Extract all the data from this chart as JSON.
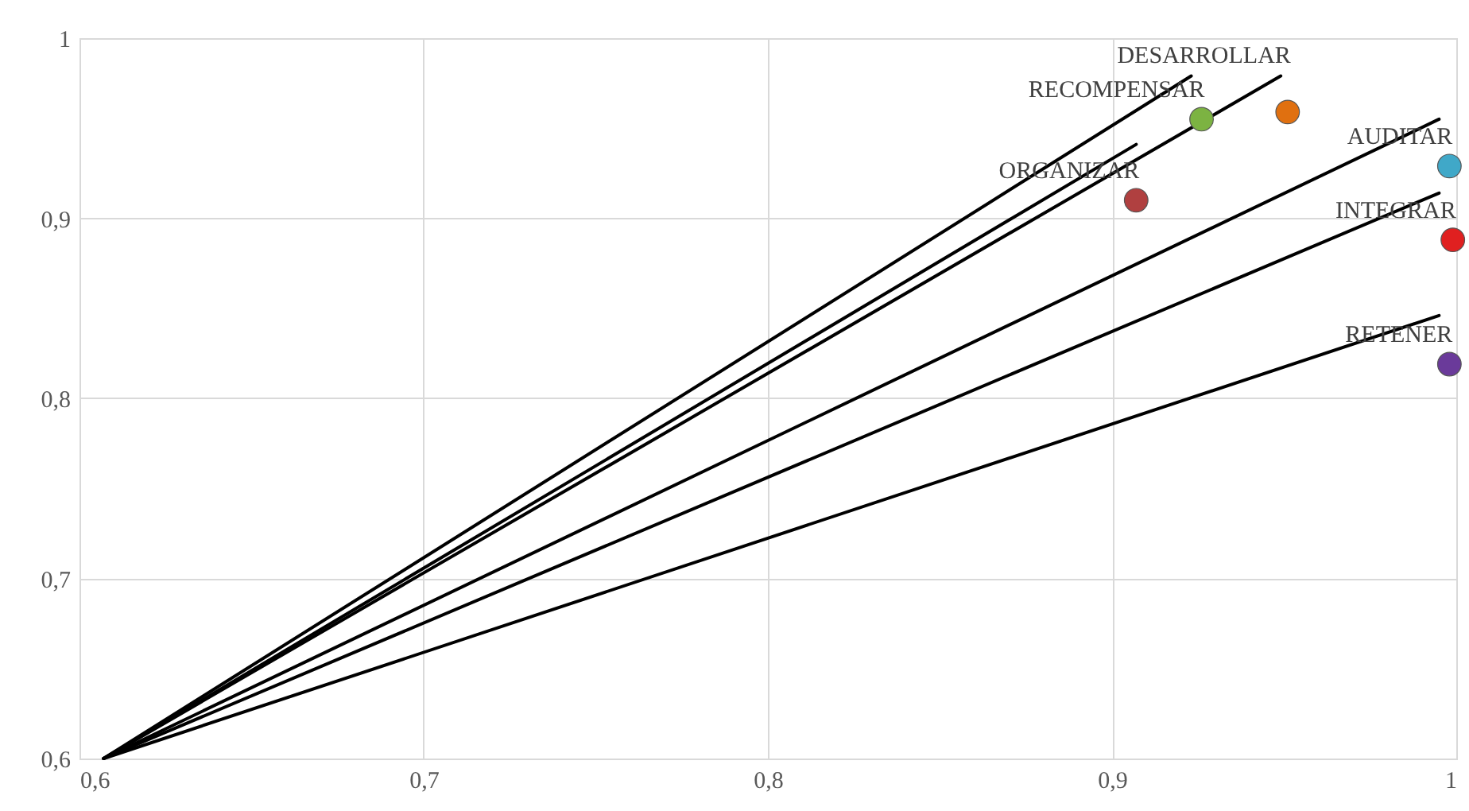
{
  "chart_data": {
    "type": "scatter",
    "marker": "circle",
    "grid": true,
    "xlim": [
      0.6,
      1
    ],
    "ylim": [
      0.6,
      1
    ],
    "xticks": [
      {
        "value": 0.6,
        "label": "0,6"
      },
      {
        "value": 0.7,
        "label": "0,7"
      },
      {
        "value": 0.8,
        "label": "0,8"
      },
      {
        "value": 0.9,
        "label": "0,9"
      },
      {
        "value": 1,
        "label": "1"
      }
    ],
    "yticks": [
      {
        "value": 0.6,
        "label": "0,6"
      },
      {
        "value": 0.7,
        "label": "0,7"
      },
      {
        "value": 0.8,
        "label": "0,8"
      },
      {
        "value": 0.9,
        "label": "0,9"
      },
      {
        "value": 1,
        "label": "1"
      }
    ],
    "series": [
      {
        "type": "line",
        "marker": "none",
        "color": "#000000",
        "x": [
          0.607,
          0.923
        ],
        "values": [
          0.6,
          0.979
        ]
      },
      {
        "type": "line",
        "marker": "none",
        "color": "#000000",
        "x": [
          0.607,
          0.907
        ],
        "values": [
          0.6,
          0.941
        ]
      },
      {
        "type": "line",
        "marker": "none",
        "color": "#000000",
        "x": [
          0.607,
          0.949
        ],
        "values": [
          0.6,
          0.979
        ]
      },
      {
        "type": "line",
        "marker": "none",
        "color": "#000000",
        "x": [
          0.607,
          0.995
        ],
        "values": [
          0.6,
          0.955
        ]
      },
      {
        "type": "line",
        "marker": "none",
        "color": "#000000",
        "x": [
          0.607,
          0.995
        ],
        "values": [
          0.6,
          0.914
        ]
      },
      {
        "type": "line",
        "marker": "none",
        "color": "#000000",
        "x": [
          0.607,
          0.995
        ],
        "values": [
          0.6,
          0.846
        ]
      },
      {
        "name": "RECOMPENSAR",
        "color": "#7cb342",
        "x": [
          0.926
        ],
        "values": [
          0.955
        ]
      },
      {
        "name": "DESARROLLAR",
        "color": "#e07010",
        "x": [
          0.951
        ],
        "values": [
          0.959
        ]
      },
      {
        "name": "ORGANIZAR",
        "color": "#b04040",
        "x": [
          0.907
        ],
        "values": [
          0.91
        ]
      },
      {
        "name": "AUDITAR",
        "color": "#40a8c8",
        "x": [
          0.998
        ],
        "values": [
          0.929
        ]
      },
      {
        "name": "INTEGRAR",
        "color": "#e02020",
        "x": [
          0.999
        ],
        "values": [
          0.888
        ]
      },
      {
        "name": "RETENER",
        "color": "#6a3a9a",
        "x": [
          0.998
        ],
        "values": [
          0.819
        ]
      }
    ]
  }
}
